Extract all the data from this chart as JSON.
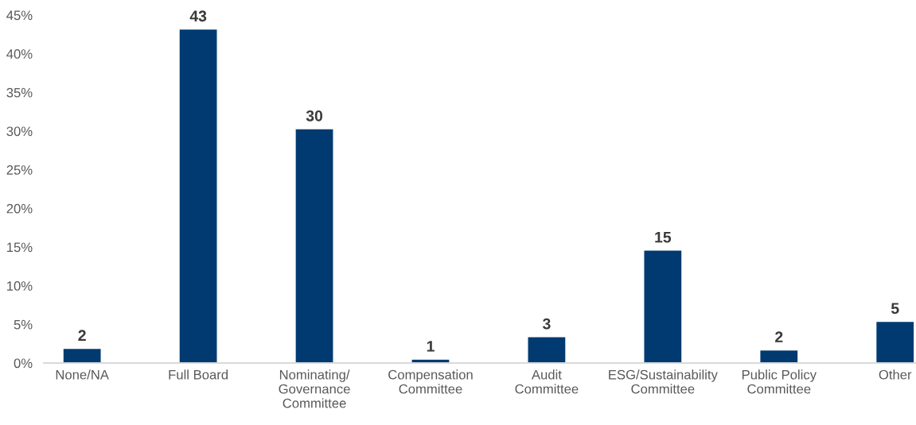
{
  "chart_data": {
    "type": "bar",
    "categories": [
      "None/NA",
      "Full Board",
      "Nominating/\nGovernance\nCommittee",
      "Compensation\nCommittee",
      "Audit\nCommittee",
      "ESG/Sustainability\nCommittee",
      "Public Policy\nCommittee",
      "Other"
    ],
    "values": [
      1.9,
      43.2,
      30.3,
      0.5,
      3.4,
      14.6,
      1.7,
      5.4
    ],
    "value_labels": [
      "2",
      "43",
      "30",
      "1",
      "3",
      "15",
      "2",
      "5"
    ],
    "color": "#003a70",
    "ylim": [
      0,
      45
    ],
    "yticks": [
      {
        "value": 0,
        "label": "0%"
      },
      {
        "value": 5,
        "label": "5%"
      },
      {
        "value": 10,
        "label": "10%"
      },
      {
        "value": 15,
        "label": "15%"
      },
      {
        "value": 20,
        "label": "20%"
      },
      {
        "value": 25,
        "label": "25%"
      },
      {
        "value": 30,
        "label": "30%"
      },
      {
        "value": 35,
        "label": "35%"
      },
      {
        "value": 40,
        "label": "40%"
      },
      {
        "value": 45,
        "label": "45%"
      }
    ]
  }
}
